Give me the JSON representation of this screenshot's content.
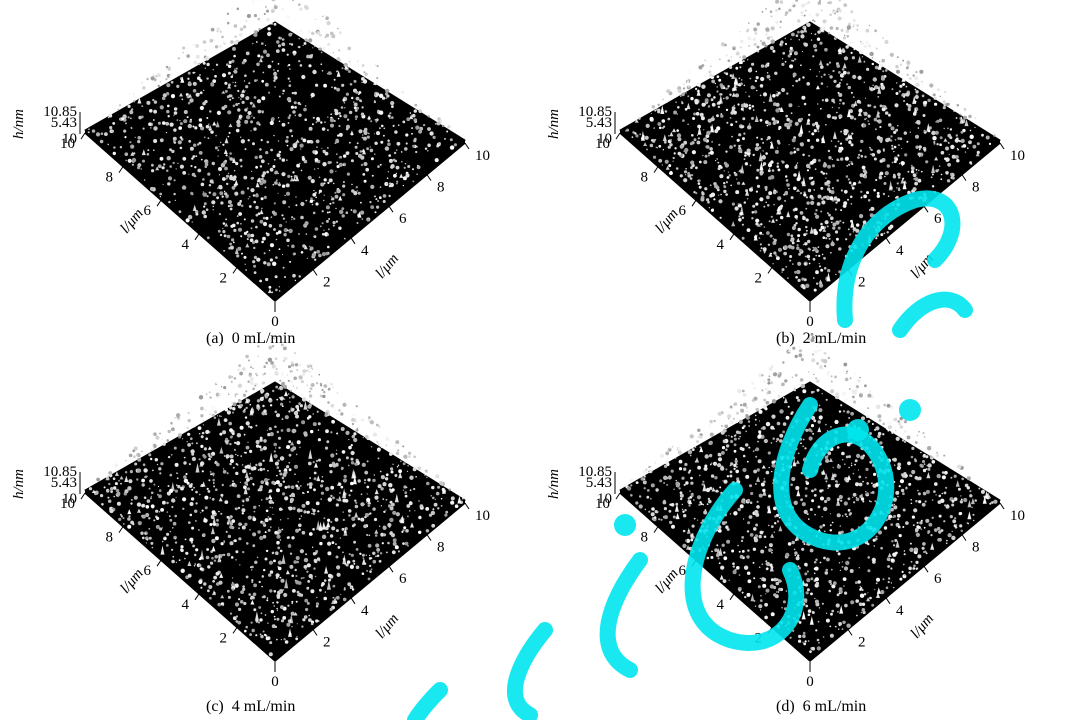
{
  "figure": {
    "panels": [
      {
        "id": "a",
        "caption": "(a)  0 mL/min",
        "h_label": "h/nm",
        "h_ticks": [
          "10.85",
          "5.43"
        ],
        "l_label_left": "l/μm",
        "l_label_right": "l/μm",
        "left_ticks": [
          "10",
          "8",
          "6",
          "4",
          "2"
        ],
        "right_ticks": [
          "2",
          "4",
          "6",
          "8",
          "10"
        ],
        "origin": "0",
        "roughness": 0.35,
        "brightness": 0.35
      },
      {
        "id": "b",
        "caption": "(b)  2 mL/min",
        "h_label": "h/nm",
        "h_ticks": [
          "10.85",
          "5.43"
        ],
        "l_label_left": "l/μm",
        "l_label_right": "l/μm",
        "left_ticks": [
          "10",
          "8",
          "6",
          "4",
          "2"
        ],
        "right_ticks": [
          "2",
          "4",
          "6",
          "8",
          "10"
        ],
        "origin": "0",
        "roughness": 0.7,
        "brightness": 0.62
      },
      {
        "id": "c",
        "caption": "(c)  4 mL/min",
        "h_label": "h/nm",
        "h_ticks": [
          "10.85",
          "5.43"
        ],
        "l_label_left": "l/μm",
        "l_label_right": "l/μm",
        "left_ticks": [
          "10",
          "8",
          "6",
          "4",
          "2"
        ],
        "right_ticks": [
          "2",
          "4",
          "6",
          "8",
          "10"
        ],
        "origin": "0",
        "roughness": 0.7,
        "brightness": 0.55
      },
      {
        "id": "d",
        "caption": "(d)  6 mL/min",
        "h_label": "h/nm",
        "h_ticks": [
          "10.85",
          "5.43"
        ],
        "l_label_left": "l/μm",
        "l_label_right": "l/μm",
        "left_ticks": [
          "10",
          "8",
          "6",
          "4",
          "2"
        ],
        "right_ticks": [
          "2",
          "4",
          "6",
          "8",
          "10"
        ],
        "origin": "0",
        "roughness": 0.55,
        "brightness": 0.5
      }
    ]
  },
  "colors": {
    "watermark": "#00e5ee",
    "surface_dark": "#000000",
    "surface_light": "#ffffff"
  }
}
